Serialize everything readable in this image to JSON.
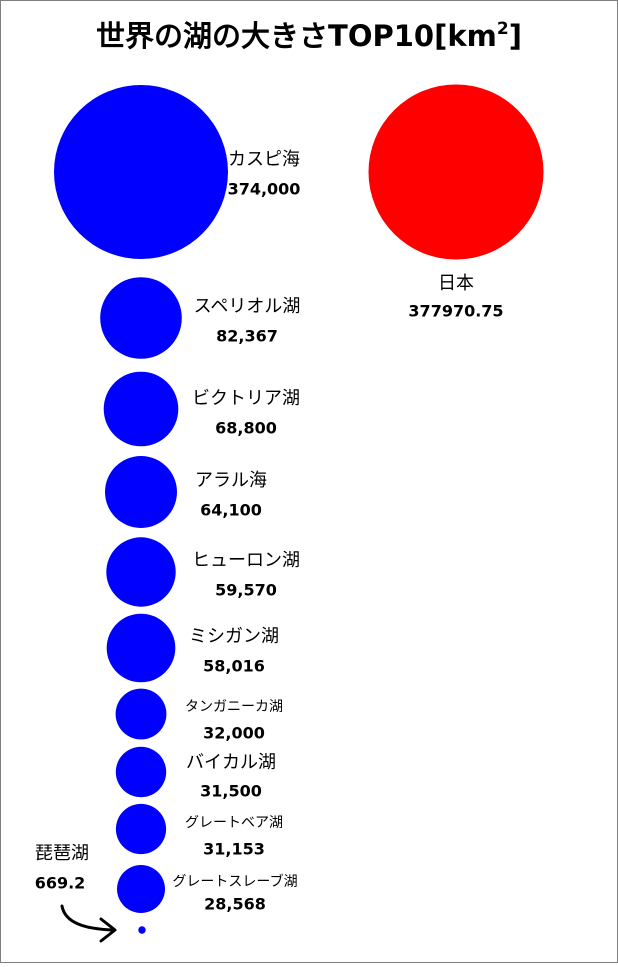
{
  "chart_data": {
    "type": "bubble",
    "title": "世界の湖の大きさTOP10[km",
    "title_superscript": "2",
    "title_suffix": "]",
    "lakes": [
      {
        "name": "カスピ海",
        "value": 374000,
        "value_label": "374,000"
      },
      {
        "name": "スペリオル湖",
        "value": 82367,
        "value_label": "82,367"
      },
      {
        "name": "ビクトリア湖",
        "value": 68800,
        "value_label": "68,800"
      },
      {
        "name": "アラル海",
        "value": 64100,
        "value_label": "64,100"
      },
      {
        "name": "ヒューロン湖",
        "value": 59570,
        "value_label": "59,570"
      },
      {
        "name": "ミシガン湖",
        "value": 58016,
        "value_label": "58,016"
      },
      {
        "name": "タンガニーカ湖",
        "value": 32000,
        "value_label": "32,000"
      },
      {
        "name": "バイカル湖",
        "value": 31500,
        "value_label": "31,500"
      },
      {
        "name": "グレートベア湖",
        "value": 31153,
        "value_label": "31,153"
      },
      {
        "name": "グレートスレーブ湖",
        "value": 28568,
        "value_label": "28,568"
      }
    ],
    "comparison": {
      "name": "日本",
      "value": 377970.75,
      "value_label": "377970.75"
    },
    "highlight": {
      "name": "琵琶湖",
      "value": 669.2,
      "value_label": "669.2"
    },
    "colors": {
      "lakes": "#0000ff",
      "comparison": "#ff0000",
      "highlight": "#0000ff",
      "text": "#000000",
      "border": "#7f7f7f"
    }
  }
}
